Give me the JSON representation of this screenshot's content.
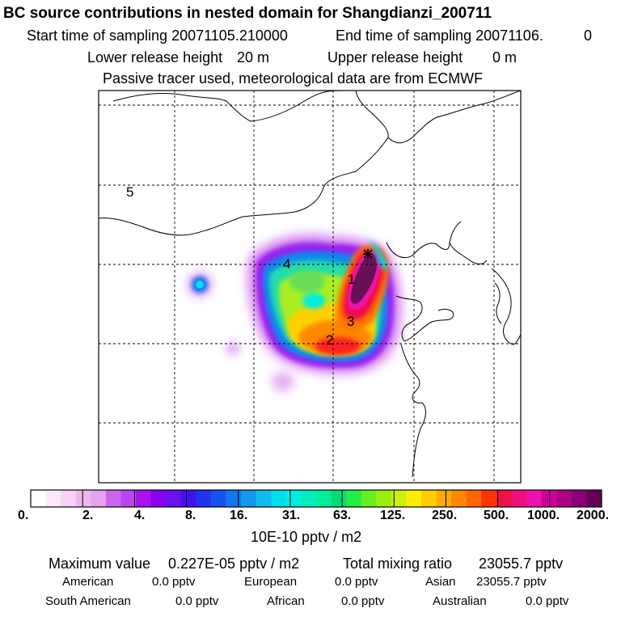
{
  "header": {
    "title": "BC  source contributions in nested domain for Shangdianzi_200711",
    "start_label": "Start time of sampling 20071105.210000",
    "end_label": "End time of sampling 20071106.",
    "end_value": "0",
    "lower_label": "Lower release height",
    "lower_value": "20 m",
    "upper_label": "Upper release height",
    "upper_value": "0 m",
    "note": "Passive tracer used, meteorological data are from ECMWF"
  },
  "map": {
    "region_labels": [
      "5",
      "4",
      "1",
      "3",
      "2"
    ],
    "station_marker": "receptor-star"
  },
  "colorbar": {
    "tick_labels": [
      "0.",
      "2.",
      "4.",
      "8.",
      "16.",
      "31.",
      "63.",
      "125.",
      "250.",
      "500.",
      "1000.",
      "2000."
    ],
    "unit": "10E-10 pptv / m2",
    "colors": [
      "#ffffff",
      "#fbe9fb",
      "#f5d3f5",
      "#eeb8ee",
      "#e6a1f0",
      "#cc66ee",
      "#bb44f0",
      "#aa11ee",
      "#8800ee",
      "#6611ee",
      "#4411ee",
      "#2233ee",
      "#1155ee",
      "#1177ee",
      "#1199ee",
      "#11bbee",
      "#00ddee",
      "#00eedd",
      "#00eebb",
      "#00ee99",
      "#00dd77",
      "#22ee44",
      "#66ee22",
      "#99ee11",
      "#ccee11",
      "#ffee00",
      "#ffcc00",
      "#ffaa00",
      "#ff8800",
      "#ff6600",
      "#ff3300",
      "#ee1144",
      "#ee1177",
      "#ee11aa",
      "#cc0099",
      "#aa0088",
      "#880077",
      "#660055"
    ]
  },
  "summary": {
    "max_label": "Maximum value",
    "max_value": "0.227E-05 pptv / m2",
    "total_label": "Total mixing ratio",
    "total_value": "23055.7 pptv",
    "regions": [
      {
        "name": "American",
        "value": "0.0 pptv"
      },
      {
        "name": "European",
        "value": "0.0 pptv"
      },
      {
        "name": "Asian",
        "value": "23055.7 pptv"
      },
      {
        "name": "South American",
        "value": "0.0 pptv"
      },
      {
        "name": "African",
        "value": "0.0 pptv"
      },
      {
        "name": "Australian",
        "value": "0.0 pptv"
      }
    ]
  }
}
